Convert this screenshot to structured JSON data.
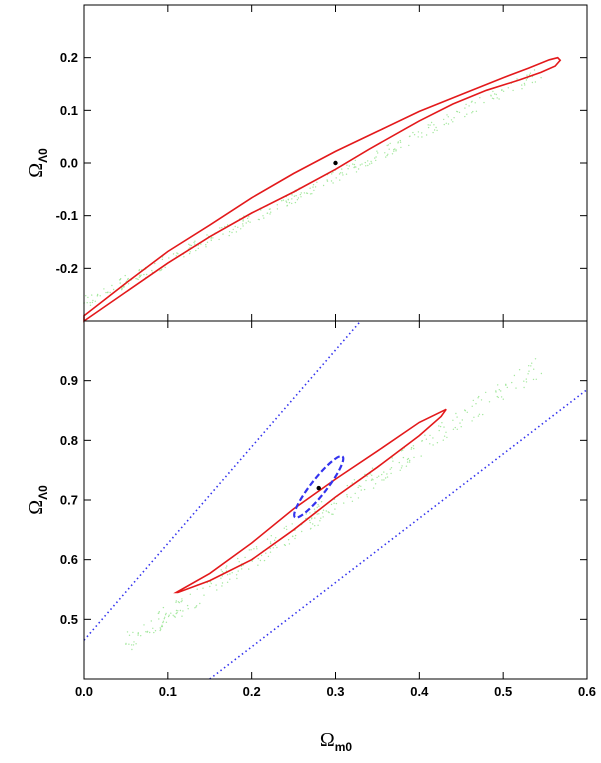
{
  "chart_data": [
    {
      "type": "scatter",
      "xlim": [
        0.0,
        0.6
      ],
      "ylim": [
        -0.3,
        0.3
      ],
      "yticks": [
        "-0.2",
        "-0.1",
        "0.0",
        "0.1",
        "0.2"
      ],
      "ylabel": "Ω",
      "ylabel_sub": "Λ0",
      "point": {
        "x": 0.3,
        "y": 0.0
      },
      "contour_red": [
        [
          0.0,
          -0.29
        ],
        [
          0.05,
          -0.228
        ],
        [
          0.1,
          -0.168
        ],
        [
          0.15,
          -0.118
        ],
        [
          0.2,
          -0.066
        ],
        [
          0.25,
          -0.02
        ],
        [
          0.3,
          0.022
        ],
        [
          0.35,
          0.06
        ],
        [
          0.4,
          0.098
        ],
        [
          0.45,
          0.13
        ],
        [
          0.5,
          0.162
        ],
        [
          0.53,
          0.18
        ],
        [
          0.555,
          0.196
        ],
        [
          0.565,
          0.2
        ],
        [
          0.568,
          0.195
        ],
        [
          0.562,
          0.184
        ],
        [
          0.545,
          0.172
        ],
        [
          0.52,
          0.158
        ],
        [
          0.48,
          0.138
        ],
        [
          0.44,
          0.112
        ],
        [
          0.4,
          0.08
        ],
        [
          0.38,
          0.062
        ],
        [
          0.34,
          0.026
        ],
        [
          0.3,
          -0.012
        ],
        [
          0.25,
          -0.055
        ],
        [
          0.2,
          -0.095
        ],
        [
          0.15,
          -0.14
        ],
        [
          0.1,
          -0.19
        ],
        [
          0.05,
          -0.245
        ],
        [
          0.0,
          -0.3
        ]
      ],
      "samples_green_band": {
        "x_range": [
          0.0,
          0.55
        ],
        "y_at_x0": -0.265,
        "y_at_x1": 0.175,
        "half_width": 0.012
      }
    },
    {
      "type": "scatter",
      "xlim": [
        0.0,
        0.6
      ],
      "ylim": [
        0.4,
        1.0
      ],
      "xticks": [
        "0.0",
        "0.1",
        "0.2",
        "0.3",
        "0.4",
        "0.5",
        "0.6"
      ],
      "yticks": [
        "0.5",
        "0.6",
        "0.7",
        "0.8",
        "0.9"
      ],
      "xlabel": "Ω",
      "xlabel_sub": "m0",
      "ylabel": "Ω",
      "ylabel_sub": "Λ0",
      "point": {
        "x": 0.28,
        "y": 0.72
      },
      "contour_red": [
        [
          0.11,
          0.545
        ],
        [
          0.15,
          0.577
        ],
        [
          0.2,
          0.628
        ],
        [
          0.25,
          0.685
        ],
        [
          0.3,
          0.735
        ],
        [
          0.35,
          0.782
        ],
        [
          0.4,
          0.83
        ],
        [
          0.432,
          0.852
        ],
        [
          0.426,
          0.84
        ],
        [
          0.4,
          0.808
        ],
        [
          0.35,
          0.755
        ],
        [
          0.3,
          0.705
        ],
        [
          0.25,
          0.65
        ],
        [
          0.2,
          0.6
        ],
        [
          0.15,
          0.565
        ],
        [
          0.112,
          0.545
        ]
      ],
      "ellipse_blue": {
        "cx": 0.28,
        "cy": 0.722,
        "rx": 0.046,
        "ry": 0.013,
        "angle_deg": -52
      },
      "line_blue_upper": [
        [
          0.0,
          0.465
        ],
        [
          0.33,
          1.0
        ]
      ],
      "line_blue_lower": [
        [
          0.15,
          0.4
        ],
        [
          0.6,
          0.885
        ]
      ],
      "samples_green_band": {
        "x_range": [
          0.05,
          0.55
        ],
        "y_at_x0": 0.46,
        "y_at_x1": 0.93,
        "half_width": 0.018
      }
    }
  ],
  "colors": {
    "red": "#e3191b",
    "blue": "#3333ee",
    "green": "#a6e8a0",
    "black": "#000000"
  }
}
